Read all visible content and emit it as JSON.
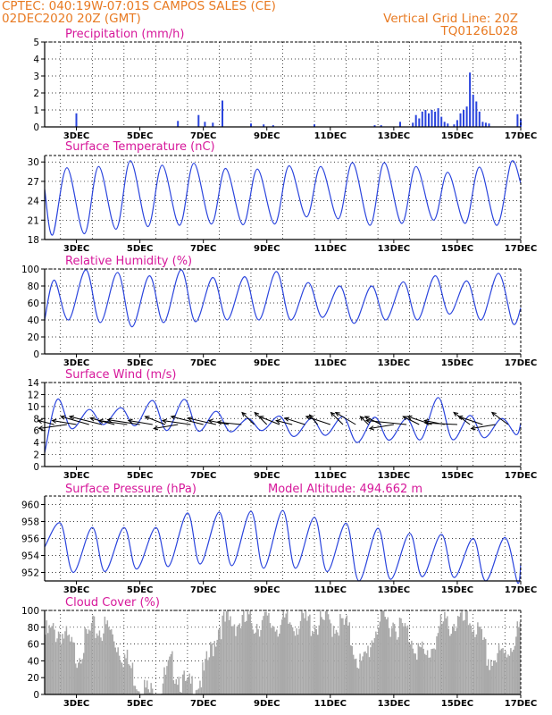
{
  "header": {
    "line1_left": "CPTEC:   040:19W-07:01S  CAMPOS SALES (CE)",
    "line2_left": "02DEC2020 20Z (GMT)",
    "line2_right": "Vertical Grid Line: 20Z",
    "line3_right": "TQ0126L028",
    "model_altitude": "Model Altitude: 494.662 m"
  },
  "colors": {
    "series": "#2a44dd",
    "cloud": "#a9a9a9",
    "title": "#d6179a",
    "header": "#e87a22"
  },
  "chart_data": [
    {
      "type": "bar",
      "title": "Precipitation (mm/h)",
      "ylim": [
        0,
        5
      ],
      "yticks": [
        0,
        1,
        2,
        3,
        4,
        5
      ],
      "xlim": [
        0,
        15
      ],
      "xticks": [
        "3DEC",
        "5DEC",
        "7DEC",
        "9DEC",
        "11DEC",
        "13DEC",
        "15DEC",
        "17DEC"
      ],
      "x": [
        1.0,
        4.2,
        4.85,
        5.05,
        5.3,
        5.6,
        6.5,
        6.9,
        7.2,
        8.5,
        10.4,
        10.6,
        11.2,
        11.6,
        11.7,
        11.8,
        11.9,
        12.0,
        12.1,
        12.2,
        12.3,
        12.4,
        12.5,
        12.6,
        12.7,
        12.9,
        13.0,
        13.1,
        13.2,
        13.3,
        13.4,
        13.5,
        13.6,
        13.7,
        13.8,
        13.9,
        14.0,
        14.9,
        15.0
      ],
      "values": [
        0.8,
        0.35,
        0.7,
        0.3,
        0.25,
        1.55,
        0.2,
        0.15,
        0.1,
        0.15,
        0.1,
        0.1,
        0.3,
        0.25,
        0.7,
        0.5,
        0.9,
        1.0,
        0.8,
        1.0,
        0.9,
        1.1,
        0.6,
        0.3,
        0.2,
        0.15,
        0.4,
        0.8,
        1.0,
        1.2,
        3.2,
        1.9,
        1.5,
        0.9,
        0.3,
        0.25,
        0.2,
        0.75,
        0.45
      ]
    },
    {
      "type": "line",
      "title": "Surface Temperature (nC)",
      "ylim": [
        18,
        31
      ],
      "yticks": [
        18,
        21,
        24,
        27,
        30
      ],
      "xlim": [
        0,
        15
      ],
      "xticks": [
        "3DEC",
        "5DEC",
        "7DEC",
        "9DEC",
        "11DEC",
        "13DEC",
        "15DEC",
        "17DEC"
      ],
      "min_x": [
        0.25,
        1.25,
        2.25,
        3.25,
        4.25,
        5.25,
        6.25,
        7.25,
        8.25,
        9.25,
        10.25,
        11.25,
        12.25,
        13.25,
        14.25
      ],
      "min_y": [
        18.7,
        18.9,
        19.6,
        20.0,
        20.2,
        20.4,
        20.3,
        20.4,
        21.5,
        21.2,
        20.2,
        20.5,
        21.0,
        20.5,
        20.2
      ],
      "max_x": [
        0.7,
        1.7,
        2.7,
        3.7,
        4.7,
        5.7,
        6.7,
        7.7,
        8.7,
        9.7,
        10.7,
        11.7,
        12.7,
        13.7,
        14.7
      ],
      "max_y": [
        29.1,
        29.3,
        30.2,
        29.5,
        29.8,
        29.0,
        28.9,
        29.4,
        29.3,
        29.9,
        29.9,
        29.3,
        28.4,
        29.2,
        30.0
      ],
      "start_y": 25.8,
      "end_y": 26.7
    },
    {
      "type": "line",
      "title": "Relative Humidity (%)",
      "ylim": [
        0,
        100
      ],
      "yticks": [
        0,
        20,
        40,
        60,
        80,
        100
      ],
      "xlim": [
        0,
        15
      ],
      "xticks": [
        "3DEC",
        "5DEC",
        "7DEC",
        "9DEC",
        "11DEC",
        "13DEC",
        "15DEC",
        "17DEC"
      ],
      "max_x": [
        0.3,
        1.3,
        2.3,
        3.3,
        4.3,
        5.3,
        6.3,
        7.3,
        8.3,
        9.3,
        10.3,
        11.3,
        12.3,
        13.3,
        14.3
      ],
      "max_y": [
        87,
        99,
        96,
        92,
        99,
        90,
        91,
        97,
        84,
        80,
        80,
        85,
        92,
        86,
        95
      ],
      "min_x": [
        0.75,
        1.75,
        2.75,
        3.75,
        4.75,
        5.75,
        6.75,
        7.75,
        8.75,
        9.75,
        10.75,
        11.75,
        12.75,
        13.75,
        14.75
      ],
      "min_y": [
        40,
        37,
        32,
        37,
        38,
        40,
        40,
        40,
        43,
        36,
        40,
        40,
        47,
        40,
        36
      ],
      "start_y": 40,
      "end_y": 54
    },
    {
      "type": "line",
      "title": "Surface Wind (m/s)",
      "ylim": [
        0,
        14
      ],
      "yticks": [
        0,
        2,
        4,
        6,
        8,
        10,
        12,
        14
      ],
      "xlim": [
        0,
        15
      ],
      "xticks": [
        "3DEC",
        "5DEC",
        "7DEC",
        "9DEC",
        "11DEC",
        "13DEC",
        "15DEC",
        "17DEC"
      ],
      "peak_x": [
        0.4,
        1.4,
        2.4,
        3.4,
        4.4,
        5.4,
        6.4,
        7.4,
        8.4,
        9.4,
        10.4,
        11.4,
        12.4,
        13.4,
        14.4
      ],
      "peak_y": [
        11.2,
        9.5,
        9.8,
        11.0,
        11.2,
        9.2,
        8.0,
        8.4,
        8.0,
        8.3,
        8.2,
        8.0,
        11.5,
        8.5,
        8.0
      ],
      "trough_x": [
        0.85,
        1.85,
        2.85,
        3.85,
        4.85,
        5.85,
        6.85,
        7.85,
        8.85,
        9.85,
        10.85,
        11.85,
        12.85,
        13.85,
        14.85
      ],
      "trough_y": [
        6.3,
        7.0,
        6.8,
        6.0,
        5.9,
        5.8,
        6.0,
        5.0,
        5.2,
        4.0,
        4.4,
        4.5,
        4.5,
        4.8,
        5.3
      ],
      "start_y": 2.3,
      "end_y": 7.2,
      "arrows_x": [
        0.3,
        0.7,
        1.0,
        1.4,
        1.8,
        2.2,
        2.6,
        3.0,
        3.4,
        3.8,
        4.2,
        4.6,
        5.0,
        5.4,
        5.8,
        6.2,
        6.6,
        7.0,
        7.4,
        7.8,
        8.2,
        8.6,
        9.0,
        9.4,
        9.8,
        10.2,
        10.6,
        11.0,
        11.4,
        11.8,
        12.2,
        12.6,
        13.0,
        13.4,
        13.8,
        14.2,
        14.6
      ],
      "arrows_u": [
        -2.0,
        -3.5,
        -3.0,
        -3.5,
        -4.0,
        -3.0,
        -3.5,
        -4.0,
        -3.0,
        -2.5,
        -3.0,
        -3.5,
        -4.0,
        -3.5,
        -2.5,
        -3.0,
        -1.5,
        -1.5,
        -2.5,
        -2.0,
        -2.5,
        -1.0,
        -3.0,
        -1.5,
        -2.5,
        -1.0,
        -2.0,
        -3.0,
        -5.0,
        -2.0,
        -3.0,
        -2.5,
        -4.0,
        -2.0,
        -3.0,
        -3.0,
        -2.0
      ],
      "arrows_v": [
        0.5,
        -0.5,
        0.5,
        1.0,
        1.0,
        0.8,
        0.5,
        0.6,
        0.5,
        1.0,
        -0.5,
        0.5,
        1.0,
        0.8,
        0.5,
        0.3,
        1.5,
        1.5,
        1.0,
        0.5,
        0.8,
        1.2,
        1.0,
        1.5,
        1.5,
        1.0,
        1.0,
        -0.5,
        0.5,
        1.0,
        1.0,
        0.5,
        0.2,
        1.5,
        1.0,
        -0.5,
        1.5
      ]
    },
    {
      "type": "line",
      "title": "Surface Pressure (hPa)",
      "ylim": [
        951,
        961
      ],
      "yticks": [
        952,
        954,
        956,
        958,
        960
      ],
      "xlim": [
        0,
        15
      ],
      "xticks": [
        "3DEC",
        "5DEC",
        "7DEC",
        "9DEC",
        "11DEC",
        "13DEC",
        "15DEC",
        "17DEC"
      ],
      "start_y": 955.0,
      "end_y": 953.0,
      "max_x": [
        0.5,
        1.5,
        2.5,
        3.5,
        4.5,
        5.5,
        6.5,
        7.5,
        8.5,
        9.5,
        10.5,
        11.5,
        12.5,
        13.5,
        14.5
      ],
      "max_y": [
        957.8,
        957.3,
        957.3,
        957.3,
        959.0,
        959.1,
        959.2,
        959.3,
        958.5,
        957.8,
        957.2,
        956.6,
        956.5,
        956.0,
        956.1
      ],
      "min_x": [
        0.9,
        1.9,
        2.9,
        3.9,
        4.9,
        5.9,
        6.9,
        7.9,
        8.9,
        9.9,
        10.9,
        11.9,
        12.9,
        13.9,
        14.9
      ],
      "min_y": [
        952.0,
        952.1,
        952.4,
        952.7,
        953.0,
        952.8,
        952.5,
        952.5,
        952.1,
        951.0,
        951.2,
        951.5,
        951.4,
        951.0,
        950.8
      ]
    },
    {
      "type": "bar",
      "title": "Cloud Cover (%)",
      "ylim": [
        0,
        100
      ],
      "yticks": [
        0,
        20,
        40,
        60,
        80,
        100
      ],
      "xlim": [
        0,
        15
      ],
      "xticks": [
        "3DEC",
        "5DEC",
        "7DEC",
        "9DEC",
        "11DEC",
        "13DEC",
        "15DEC",
        "17DEC"
      ],
      "x": [
        0.0,
        0.5,
        1.0,
        1.5,
        2.0,
        2.5,
        3.0,
        3.5,
        4.0,
        4.5,
        5.0,
        5.5,
        6.0,
        6.5,
        7.0,
        7.5,
        8.0,
        8.5,
        9.0,
        9.5,
        10.0,
        10.5,
        11.0,
        11.5,
        12.0,
        12.5,
        13.0,
        13.5,
        14.0,
        14.5,
        15.0
      ],
      "values": [
        80,
        85,
        55,
        85,
        88,
        55,
        20,
        5,
        45,
        15,
        30,
        92,
        95,
        95,
        94,
        92,
        95,
        93,
        94,
        90,
        40,
        95,
        95,
        80,
        50,
        90,
        95,
        95,
        50,
        55,
        90
      ]
    }
  ]
}
